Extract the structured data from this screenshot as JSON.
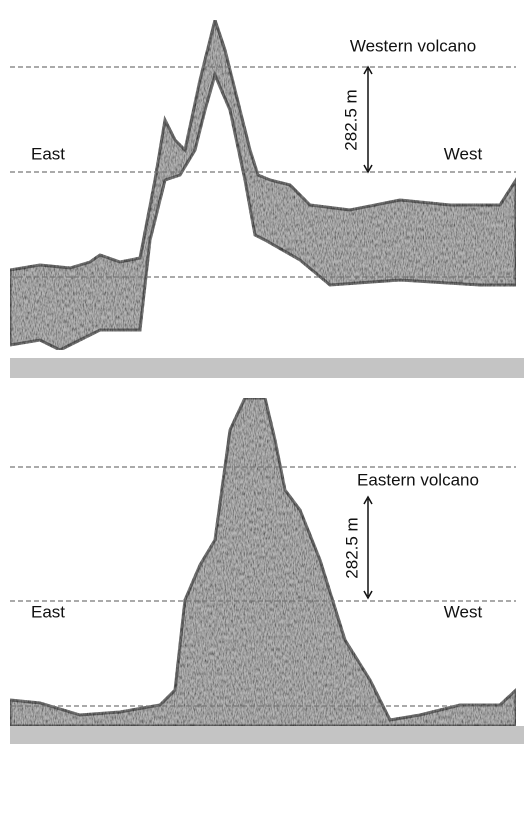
{
  "panels": [
    {
      "title": "Western volcano",
      "scale_label": "282.5 m",
      "left_label": "East",
      "right_label": "West"
    },
    {
      "title": "Eastern volcano",
      "scale_label": "282.5 m",
      "left_label": "East",
      "right_label": "West"
    }
  ]
}
